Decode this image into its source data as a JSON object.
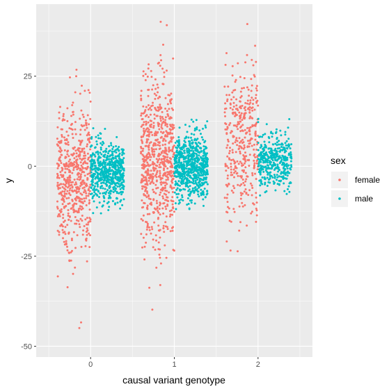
{
  "chart_data": {
    "type": "scatter",
    "subtype": "jitter",
    "title": "",
    "xlabel": "causal variant genotype",
    "ylabel": "y",
    "x_ticks": [
      "0",
      "1",
      "2"
    ],
    "y_ticks": [
      "-50",
      "-25",
      "0",
      "25"
    ],
    "xlim": [
      -0.65,
      2.65
    ],
    "ylim": [
      -53,
      45
    ],
    "grid": true,
    "legend_position": "right",
    "legend_title": "sex",
    "series": [
      {
        "name": "female",
        "color": "#F8766D",
        "x_offset": -0.2,
        "groups": [
          {
            "x": 0,
            "count": 560,
            "mean": -3,
            "sd": 10,
            "min": -50,
            "max": 28
          },
          {
            "x": 1,
            "count": 680,
            "mean": 2,
            "sd": 12,
            "min": -40,
            "max": 41
          },
          {
            "x": 2,
            "count": 380,
            "mean": 7,
            "sd": 11,
            "min": -33,
            "max": 40
          }
        ]
      },
      {
        "name": "male",
        "color": "#00BFC4",
        "x_offset": 0.2,
        "groups": [
          {
            "x": 0,
            "count": 560,
            "mean": -1.5,
            "sd": 4,
            "min": -15,
            "max": 12
          },
          {
            "x": 1,
            "count": 680,
            "mean": 0,
            "sd": 4.5,
            "min": -12,
            "max": 13
          },
          {
            "x": 2,
            "count": 380,
            "mean": 1.5,
            "sd": 4,
            "min": -10,
            "max": 14
          }
        ]
      }
    ]
  }
}
